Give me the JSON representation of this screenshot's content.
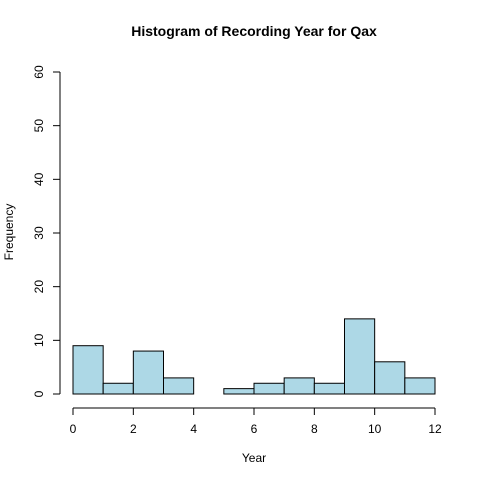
{
  "chart_data": {
    "type": "bar",
    "title": "Histogram of Recording Year for Qax",
    "xlabel": "Year",
    "ylabel": "Frequency",
    "bar_color": "#add8e6",
    "xlim": [
      0,
      12
    ],
    "ylim": [
      0,
      60
    ],
    "x_ticks": [
      0,
      2,
      4,
      6,
      8,
      10,
      12
    ],
    "y_ticks": [
      0,
      10,
      20,
      30,
      40,
      50,
      60
    ],
    "bins": [
      {
        "x0": 0,
        "x1": 1,
        "count": 9
      },
      {
        "x0": 1,
        "x1": 2,
        "count": 2
      },
      {
        "x0": 2,
        "x1": 3,
        "count": 8
      },
      {
        "x0": 3,
        "x1": 4,
        "count": 3
      },
      {
        "x0": 4,
        "x1": 5,
        "count": 0
      },
      {
        "x0": 5,
        "x1": 6,
        "count": 1
      },
      {
        "x0": 6,
        "x1": 7,
        "count": 2
      },
      {
        "x0": 7,
        "x1": 8,
        "count": 3
      },
      {
        "x0": 8,
        "x1": 9,
        "count": 2
      },
      {
        "x0": 9,
        "x1": 10,
        "count": 14
      },
      {
        "x0": 10,
        "x1": 11,
        "count": 6
      },
      {
        "x0": 11,
        "x1": 12,
        "count": 3
      }
    ]
  }
}
